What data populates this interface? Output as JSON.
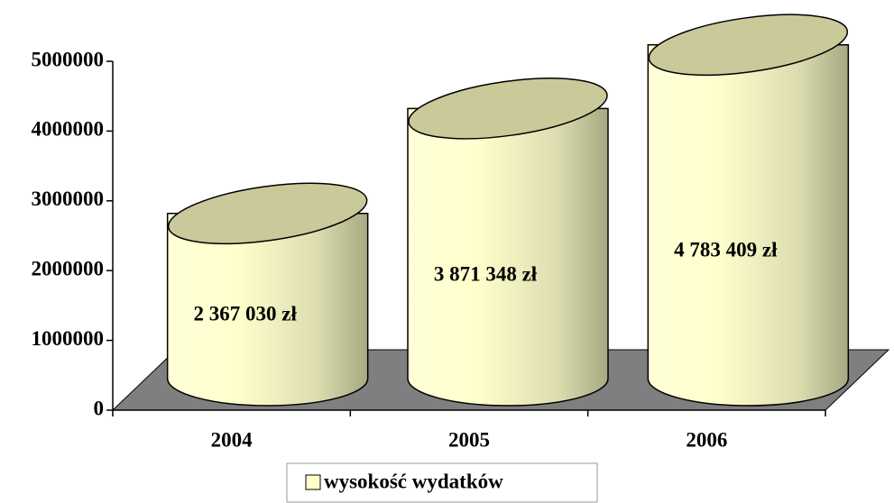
{
  "chart_data": {
    "type": "bar",
    "categories": [
      "2004",
      "2005",
      "2006"
    ],
    "series": [
      {
        "name": "wysokość wydatków",
        "color": "#ffffcc",
        "values": [
          2367030,
          3871348,
          4783409
        ],
        "value_labels": [
          "2 367 030 zł",
          "3 871 348 zł",
          "4 783 409 zł"
        ]
      }
    ],
    "ylim": [
      0,
      5000000
    ],
    "yticks": [
      0,
      1000000,
      2000000,
      3000000,
      4000000,
      5000000
    ],
    "legend": "bottom"
  }
}
